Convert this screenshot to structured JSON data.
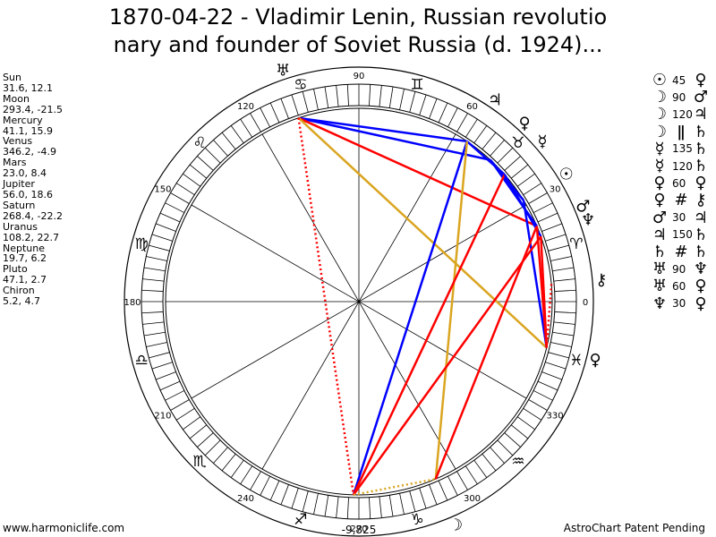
{
  "title": {
    "line1": "1870-04-22 - Vladimir Lenin, Russian revolutio",
    "line2": "nary and founder of Soviet Russia (d. 1924)..."
  },
  "planets": [
    {
      "name": "Sun",
      "values": "31.6, 12.1"
    },
    {
      "name": "Moon",
      "values": "293.4, -21.5"
    },
    {
      "name": "Mercury",
      "values": "41.1, 15.9"
    },
    {
      "name": "Venus",
      "values": "346.2, -4.9"
    },
    {
      "name": "Mars",
      "values": "23.0, 8.4"
    },
    {
      "name": "Jupiter",
      "values": "56.0, 18.6"
    },
    {
      "name": "Saturn",
      "values": "268.4, -22.2"
    },
    {
      "name": "Uranus",
      "values": "108.2, 22.7"
    },
    {
      "name": "Neptune",
      "values": "19.7, 6.2"
    },
    {
      "name": "Pluto",
      "values": "47.1, 2.7"
    },
    {
      "name": "Chiron",
      "values": "5.2, 4.7"
    }
  ],
  "aspects": [
    {
      "g1": "☉",
      "angle": "45",
      "g2": "♀"
    },
    {
      "g1": "☽",
      "angle": "90",
      "g2": "♂"
    },
    {
      "g1": "☽",
      "angle": "120",
      "g2": "♃"
    },
    {
      "g1": "☽",
      "angle": "ǁ",
      "g2": "♄"
    },
    {
      "g1": "☿",
      "angle": "135",
      "g2": "♄"
    },
    {
      "g1": "☿",
      "angle": "120",
      "g2": "♄"
    },
    {
      "g1": "♀",
      "angle": "60",
      "g2": "♀"
    },
    {
      "g1": "♀",
      "angle": "#",
      "g2": "⚷"
    },
    {
      "g1": "♂",
      "angle": "30",
      "g2": "♃"
    },
    {
      "g1": "♃",
      "angle": "150",
      "g2": "♄"
    },
    {
      "g1": "♄",
      "angle": "#",
      "g2": "♄"
    },
    {
      "g1": "♅",
      "angle": "90",
      "g2": "♆"
    },
    {
      "g1": "♅",
      "angle": "60",
      "g2": "♀"
    },
    {
      "g1": "♆",
      "angle": "30",
      "g2": "♀"
    }
  ],
  "wheel": {
    "degree_labels": [
      "0",
      "30",
      "60",
      "90",
      "120",
      "150",
      "180",
      "210",
      "240",
      "270",
      "300",
      "330"
    ],
    "bottom_value": "-9,825",
    "signs": [
      "♈",
      "♉",
      "♊",
      "♋",
      "♌",
      "♍",
      "♎",
      "♏",
      "♐",
      "♑",
      "♒",
      "♓"
    ]
  },
  "chart_planets": [
    {
      "glyph": "☉",
      "lon": 31.6
    },
    {
      "glyph": "☽",
      "lon": 293.4
    },
    {
      "glyph": "☿",
      "lon": 41.1
    },
    {
      "glyph": "♀",
      "lon": 346.2
    },
    {
      "glyph": "♂",
      "lon": 23.0
    },
    {
      "glyph": "♃",
      "lon": 56.0
    },
    {
      "glyph": "♄",
      "lon": 268.4
    },
    {
      "glyph": "♅",
      "lon": 108.2
    },
    {
      "glyph": "♆",
      "lon": 19.7
    },
    {
      "glyph": "♀",
      "lon": 47.1
    },
    {
      "glyph": "⚷",
      "lon": 5.2
    }
  ],
  "aspect_lines": [
    {
      "a": 108.2,
      "b": 56.0,
      "color": "#0000ff",
      "style": "solid"
    },
    {
      "a": 108.2,
      "b": 47.1,
      "color": "#0000ff",
      "style": "solid"
    },
    {
      "a": 108.2,
      "b": 23.0,
      "color": "#ff0000",
      "style": "solid"
    },
    {
      "a": 108.2,
      "b": 346.2,
      "color": "#daa520",
      "style": "solid"
    },
    {
      "a": 108.2,
      "b": 268.4,
      "color": "#ff0000",
      "style": "dotted"
    },
    {
      "a": 56.0,
      "b": 41.1,
      "color": "#0000ff",
      "style": "solid"
    },
    {
      "a": 56.0,
      "b": 268.4,
      "color": "#0000ff",
      "style": "solid"
    },
    {
      "a": 56.0,
      "b": 293.4,
      "color": "#daa520",
      "style": "solid"
    },
    {
      "a": 47.1,
      "b": 31.6,
      "color": "#0000ff",
      "style": "solid"
    },
    {
      "a": 47.1,
      "b": 23.0,
      "color": "#0000ff",
      "style": "solid"
    },
    {
      "a": 41.1,
      "b": 268.4,
      "color": "#ff0000",
      "style": "solid"
    },
    {
      "a": 41.1,
      "b": 19.7,
      "color": "#0000ff",
      "style": "solid"
    },
    {
      "a": 31.6,
      "b": 346.2,
      "color": "#0000ff",
      "style": "solid"
    },
    {
      "a": 23.0,
      "b": 293.4,
      "color": "#ff0000",
      "style": "solid"
    },
    {
      "a": 23.0,
      "b": 346.2,
      "color": "#ff0000",
      "style": "solid"
    },
    {
      "a": 19.7,
      "b": 346.2,
      "color": "#ff0000",
      "style": "solid"
    },
    {
      "a": 19.7,
      "b": 268.4,
      "color": "#ff0000",
      "style": "solid"
    },
    {
      "a": 5.2,
      "b": 346.2,
      "color": "#ff0000",
      "style": "dotted"
    },
    {
      "a": 268.4,
      "b": 293.4,
      "color": "#daa520",
      "style": "dotted"
    }
  ],
  "footer": {
    "left": "www.harmoniclife.com",
    "right": "AstroChart Patent Pending"
  }
}
